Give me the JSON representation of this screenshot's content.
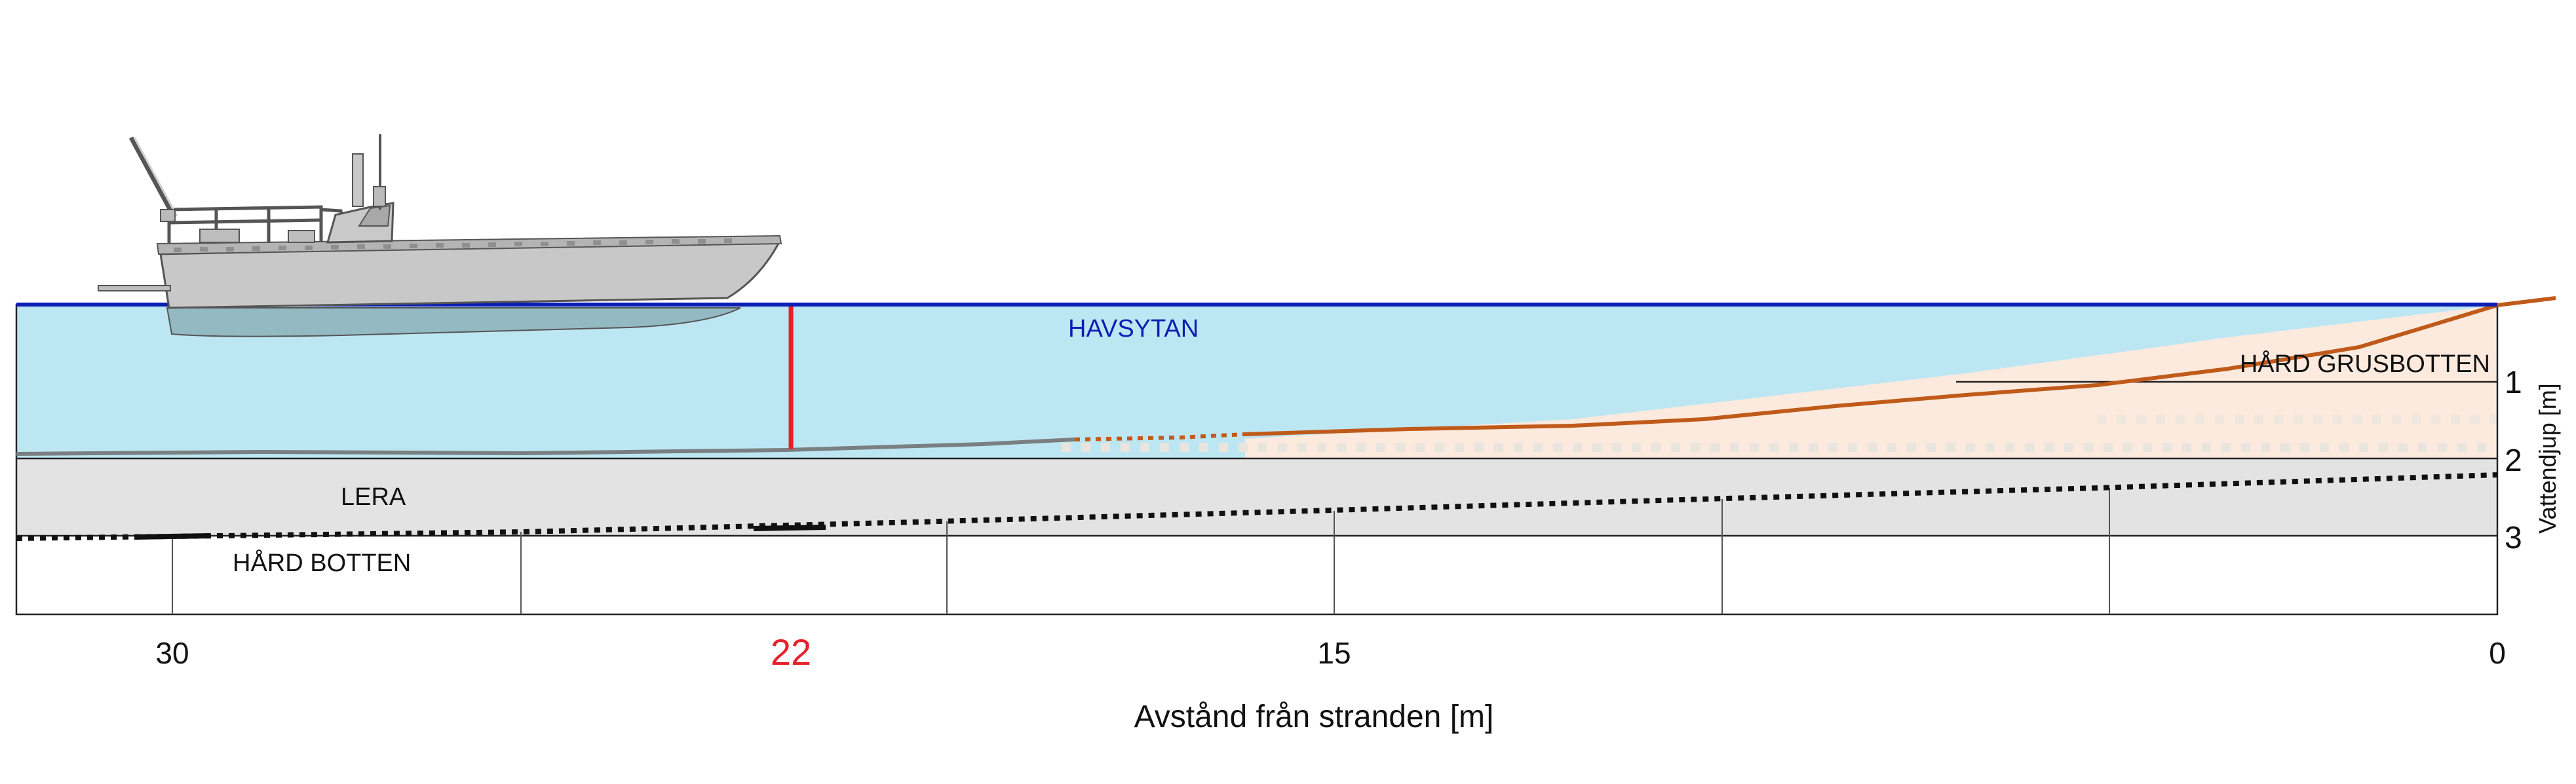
{
  "labels": {
    "surface": "HAVSYTAN",
    "gravel": "HÅRD GRUSBOTTEN",
    "clay": "LERA",
    "hard": "HÅRD BOTTEN"
  },
  "axes": {
    "x_title": "Avstånd från stranden [m]",
    "y_title": "Vattendjup [m]",
    "x_ticks": [
      "30",
      "22",
      "15",
      "0"
    ],
    "y_ticks": [
      "1",
      "2",
      "3"
    ]
  },
  "colors": {
    "water": "#bde6f3",
    "surface": "#0a1eb4",
    "gravel_fill": "#fbeadd",
    "gravel_line": "#c05a1a",
    "clay": "#e3e3e3",
    "mud_line": "#7a7f82",
    "marker": "#e8202a",
    "boat_hull": "#c8c8c8"
  },
  "chart_data": {
    "type": "diagram",
    "xlabel": "Avstånd från stranden [m]",
    "ylabel": "Vattendjup [m]",
    "x_ticks": [
      30,
      22,
      15,
      0
    ],
    "y_ticks": [
      1,
      2,
      3
    ],
    "marker_distance": 22,
    "layers": [
      "HAVSYTAN",
      "HÅRD GRUSBOTTEN",
      "LERA",
      "HÅRD BOTTEN"
    ]
  }
}
